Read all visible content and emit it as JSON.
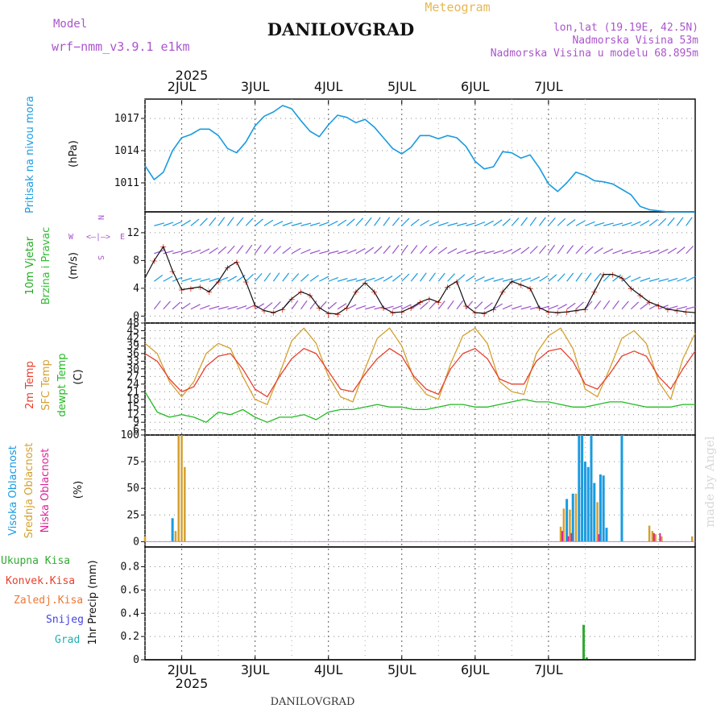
{
  "header": {
    "model_label": "Model",
    "model_name": "wrf−nmm_v3.9.1  e1km",
    "station": "DANILOVGRAD",
    "meteogram_label": "Meteogram",
    "lonlat": "lon,lat (19.19E, 42.5N)",
    "elevation": "Nadmorska Visina 53m",
    "model_elevation": "Nadmorska Visina u modelu 68.895m",
    "year": "2025",
    "footer_station": "DANILOVGRAD",
    "watermark": "made by Angel"
  },
  "colors": {
    "pressure": "#1a9be0",
    "wind_label": "#22aa22",
    "wind_label2": "#33bb33",
    "wind_dir": "#9955cc",
    "temp2m": "#e8402e",
    "sfc": "#d4a030",
    "dewpt": "#22bb22",
    "cloud_high": "#1a9be0",
    "cloud_mid": "#d4a030",
    "cloud_low": "#dd2299",
    "precip_total": "#33aa33",
    "precip_conv": "#e8402e",
    "precip_frozen": "#ee7733",
    "precip_snow": "#4444dd",
    "precip_hail": "#22b0b0"
  },
  "chart_data": [
    {
      "type": "line",
      "panel": "pressure",
      "ylabel": "Pritisak na nivou mora",
      "unit": "(hPa)",
      "yticks": [
        1011,
        1014,
        1017
      ],
      "ylim": [
        1008.3,
        1018.8
      ],
      "x_unit": "hours since 2 JUL 00:00",
      "xlim": [
        -12,
        168
      ],
      "date_ticks": [
        "2JUL",
        "3JUL",
        "4JUL",
        "5JUL",
        "6JUL",
        "7JUL"
      ],
      "grid": true,
      "series": [
        {
          "key": "pressure",
          "x": [
            -12,
            -9,
            -6,
            -3,
            0,
            3,
            6,
            9,
            12,
            15,
            18,
            21,
            24,
            27,
            30,
            33,
            36,
            39,
            42,
            45,
            48,
            51,
            54,
            57,
            60,
            63,
            66,
            69,
            72,
            75,
            78,
            81,
            84,
            87,
            90,
            93,
            96,
            99,
            102,
            105,
            108,
            111,
            114,
            117,
            120,
            123,
            126,
            129,
            132,
            135,
            138,
            141,
            144,
            147,
            150,
            153,
            156,
            159,
            162,
            165,
            168
          ],
          "values": [
            1012.6,
            1011.3,
            1012.0,
            1014.0,
            1015.2,
            1015.5,
            1016.0,
            1016.0,
            1015.4,
            1014.2,
            1013.8,
            1014.8,
            1016.3,
            1017.2,
            1017.6,
            1018.2,
            1017.9,
            1016.8,
            1015.8,
            1015.3,
            1016.4,
            1017.3,
            1017.1,
            1016.6,
            1016.9,
            1016.2,
            1015.2,
            1014.2,
            1013.7,
            1014.3,
            1015.4,
            1015.4,
            1015.1,
            1015.4,
            1015.2,
            1014.4,
            1013.0,
            1012.3,
            1012.5,
            1013.9,
            1013.8,
            1013.3,
            1013.6,
            1012.4,
            1010.9,
            1010.2,
            1011.0,
            1012.0,
            1011.7,
            1011.2,
            1011.1,
            1010.9,
            1010.4,
            1009.9,
            1008.8,
            1008.5,
            1008.4,
            1008.3,
            1008.3,
            1008.3,
            1008.3
          ]
        }
      ]
    },
    {
      "type": "line",
      "panel": "wind",
      "ylabel": "10m Vjetar Brzina i Pravac",
      "unit": "(m/s)",
      "compass": {
        "n": "N",
        "w": "W",
        "e": "E",
        "s": "S"
      },
      "yticks": [
        0,
        4,
        8,
        12
      ],
      "ylim": [
        -1,
        15
      ],
      "grid": true,
      "series": [
        {
          "key": "wind_speed",
          "x": [
            -12,
            -9,
            -6,
            -3,
            0,
            3,
            6,
            9,
            12,
            15,
            18,
            21,
            24,
            27,
            30,
            33,
            36,
            39,
            42,
            45,
            48,
            51,
            54,
            57,
            60,
            63,
            66,
            69,
            72,
            75,
            78,
            81,
            84,
            87,
            90,
            93,
            96,
            99,
            102,
            105,
            108,
            111,
            114,
            117,
            120,
            123,
            126,
            129,
            132,
            135,
            138,
            141,
            144,
            147,
            150,
            153,
            156,
            159,
            162,
            165,
            168
          ],
          "values": [
            5.5,
            8.0,
            10.0,
            6.5,
            3.8,
            4.0,
            4.2,
            3.5,
            5.0,
            7.0,
            7.8,
            5.0,
            1.5,
            0.8,
            0.5,
            1.0,
            2.5,
            3.5,
            3.0,
            1.2,
            0.4,
            0.3,
            1.2,
            3.5,
            4.8,
            3.5,
            1.2,
            0.5,
            0.6,
            1.2,
            2.0,
            2.5,
            2.0,
            4.2,
            5.0,
            1.5,
            0.5,
            0.4,
            1.0,
            3.5,
            5.0,
            4.5,
            4.0,
            1.2,
            0.6,
            0.5,
            0.6,
            0.8,
            1.0,
            3.5,
            6.0,
            6.0,
            5.5,
            4.0,
            3.0,
            2.0,
            1.5,
            1.0,
            0.8,
            0.6,
            0.5
          ]
        }
      ]
    },
    {
      "type": "line",
      "panel": "temperature",
      "ylabel": [
        "2m Temp",
        "SFC Temp",
        "dewpt Temp"
      ],
      "unit": "(C)",
      "yticks": [
        6,
        9,
        12,
        15,
        18,
        21,
        24,
        27,
        30,
        33,
        36,
        39,
        42,
        45,
        48
      ],
      "ylim": [
        4,
        48
      ],
      "grid": true,
      "series": [
        {
          "key": "temp2m",
          "x": [
            -12,
            -8,
            -4,
            0,
            4,
            8,
            12,
            16,
            20,
            24,
            28,
            32,
            36,
            40,
            44,
            48,
            52,
            56,
            60,
            64,
            68,
            72,
            76,
            80,
            84,
            88,
            92,
            96,
            100,
            104,
            108,
            112,
            116,
            120,
            124,
            128,
            132,
            136,
            140,
            144,
            148,
            152,
            156,
            160,
            164,
            168
          ],
          "values": [
            36,
            33,
            26,
            21,
            23,
            31,
            35,
            36,
            30,
            22,
            19,
            27,
            34,
            38,
            36,
            29,
            22,
            21,
            28,
            34,
            38,
            35,
            27,
            22,
            20,
            30,
            36,
            38,
            34,
            26,
            24,
            24,
            33,
            37,
            38,
            33,
            24,
            22,
            28,
            35,
            37,
            35,
            27,
            22,
            30,
            37
          ]
        },
        {
          "key": "sfc",
          "x": [
            -12,
            -8,
            -4,
            0,
            4,
            8,
            12,
            16,
            20,
            24,
            28,
            32,
            36,
            40,
            44,
            48,
            52,
            56,
            60,
            64,
            68,
            72,
            76,
            80,
            84,
            88,
            92,
            96,
            100,
            104,
            108,
            112,
            116,
            120,
            124,
            128,
            132,
            136,
            140,
            144,
            148,
            152,
            156,
            160,
            164,
            168
          ],
          "values": [
            40,
            36,
            25,
            19,
            25,
            36,
            40,
            38,
            27,
            18,
            16,
            28,
            41,
            46,
            40,
            27,
            19,
            17,
            30,
            42,
            46,
            39,
            26,
            20,
            18,
            32,
            43,
            46,
            40,
            25,
            21,
            20,
            36,
            43,
            46,
            38,
            22,
            19,
            30,
            42,
            45,
            40,
            25,
            18,
            34,
            44
          ]
        },
        {
          "key": "dewpt",
          "x": [
            -12,
            -8,
            -4,
            0,
            4,
            8,
            12,
            16,
            20,
            24,
            28,
            32,
            36,
            40,
            44,
            48,
            52,
            56,
            60,
            64,
            68,
            72,
            76,
            80,
            84,
            88,
            92,
            96,
            100,
            104,
            108,
            112,
            116,
            120,
            124,
            128,
            132,
            136,
            140,
            144,
            148,
            152,
            156,
            160,
            164,
            168
          ],
          "values": [
            21,
            13,
            11,
            12,
            11,
            9,
            13,
            12,
            14,
            11,
            9,
            11,
            11,
            12,
            10,
            13,
            14,
            14,
            15,
            16,
            15,
            15,
            14,
            14,
            15,
            16,
            16,
            15,
            15,
            16,
            17,
            18,
            17,
            17,
            16,
            15,
            15,
            16,
            17,
            17,
            16,
            15,
            15,
            15,
            16,
            16
          ]
        }
      ]
    },
    {
      "type": "bar",
      "panel": "clouds",
      "ylabel": [
        "Visoka Oblacnost",
        "Srednja Oblacnost",
        "Niska Oblacnost"
      ],
      "unit": "(%)",
      "yticks": [
        0,
        25,
        50,
        75,
        100
      ],
      "ylim": [
        -5,
        100
      ],
      "grid": true,
      "series": [
        {
          "key": "cloud_high",
          "x": [
            -3,
            126,
            128,
            130,
            131,
            132,
            133,
            134,
            135,
            137,
            138,
            139,
            144
          ],
          "values": [
            22,
            40,
            45,
            100,
            100,
            75,
            70,
            100,
            55,
            63,
            62,
            13,
            100
          ]
        },
        {
          "key": "cloud_mid",
          "x": [
            -12,
            -2,
            -1,
            0,
            1,
            124,
            125,
            127,
            129,
            136,
            153,
            154,
            155,
            157,
            167
          ],
          "values": [
            5,
            10,
            100,
            100,
            70,
            14,
            31,
            30,
            45,
            37,
            15,
            10,
            7,
            5,
            5
          ]
        },
        {
          "key": "cloud_low",
          "x": [
            124.5,
            126.5,
            127.5,
            136.5,
            154.5,
            156.5
          ],
          "values": [
            10,
            5,
            8,
            7,
            8,
            8
          ]
        }
      ]
    },
    {
      "type": "bar",
      "panel": "precip",
      "ylabel": "1hr Precip (mm)",
      "legend": [
        "Ukupna  Kisa",
        "Konvek.Kisa",
        "Zaledj.Kisa",
        "Snijeg",
        "Grad"
      ],
      "yticks": [
        0,
        0.2,
        0.4,
        0.6,
        0.8
      ],
      "ylim": [
        0,
        0.97
      ],
      "grid": true,
      "series": [
        {
          "key": "precip_total",
          "x": [
            131.5,
            132.5
          ],
          "values": [
            0.3,
            0.02
          ]
        }
      ]
    }
  ]
}
